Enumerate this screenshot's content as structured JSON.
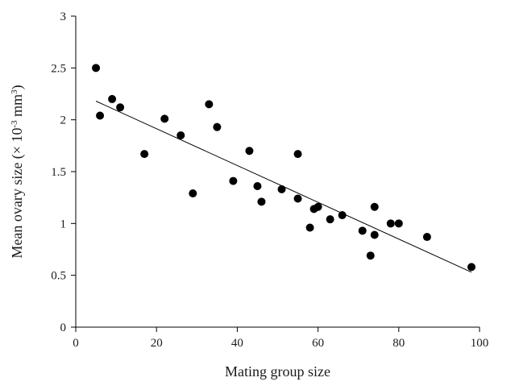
{
  "chart_data": {
    "type": "scatter",
    "title": "",
    "xlabel": "Mating group size",
    "ylabel_parts": [
      "Mean ovary size (× 10",
      "-3",
      " mm",
      "3",
      ")"
    ],
    "xlim": [
      0,
      100
    ],
    "ylim": [
      0,
      3
    ],
    "xticks": [
      0,
      20,
      40,
      60,
      80,
      100
    ],
    "yticks": [
      0,
      0.5,
      1,
      1.5,
      2,
      2.5,
      3
    ],
    "ytick_labels": [
      "0",
      "0.5",
      "1",
      "1.5",
      "2",
      "2.5",
      "3"
    ],
    "grid": false,
    "legend": "none",
    "marker_color": "#000000",
    "points": [
      {
        "x": 5,
        "y": 2.5
      },
      {
        "x": 6,
        "y": 2.04
      },
      {
        "x": 9,
        "y": 2.2
      },
      {
        "x": 11,
        "y": 2.12
      },
      {
        "x": 17,
        "y": 1.67
      },
      {
        "x": 22,
        "y": 2.01
      },
      {
        "x": 26,
        "y": 1.85
      },
      {
        "x": 29,
        "y": 1.29
      },
      {
        "x": 33,
        "y": 2.15
      },
      {
        "x": 35,
        "y": 1.93
      },
      {
        "x": 39,
        "y": 1.41
      },
      {
        "x": 43,
        "y": 1.7
      },
      {
        "x": 45,
        "y": 1.36
      },
      {
        "x": 46,
        "y": 1.21
      },
      {
        "x": 51,
        "y": 1.33
      },
      {
        "x": 55,
        "y": 1.67
      },
      {
        "x": 55,
        "y": 1.24
      },
      {
        "x": 58,
        "y": 0.96
      },
      {
        "x": 59,
        "y": 1.14
      },
      {
        "x": 60,
        "y": 1.16
      },
      {
        "x": 63,
        "y": 1.04
      },
      {
        "x": 66,
        "y": 1.08
      },
      {
        "x": 71,
        "y": 0.93
      },
      {
        "x": 73,
        "y": 0.69
      },
      {
        "x": 74,
        "y": 0.89
      },
      {
        "x": 74,
        "y": 1.16
      },
      {
        "x": 78,
        "y": 1.0
      },
      {
        "x": 80,
        "y": 1.0
      },
      {
        "x": 87,
        "y": 0.87
      },
      {
        "x": 98,
        "y": 0.58
      }
    ],
    "trendline": {
      "x1": 5,
      "y1": 2.18,
      "x2": 98,
      "y2": 0.53
    }
  }
}
